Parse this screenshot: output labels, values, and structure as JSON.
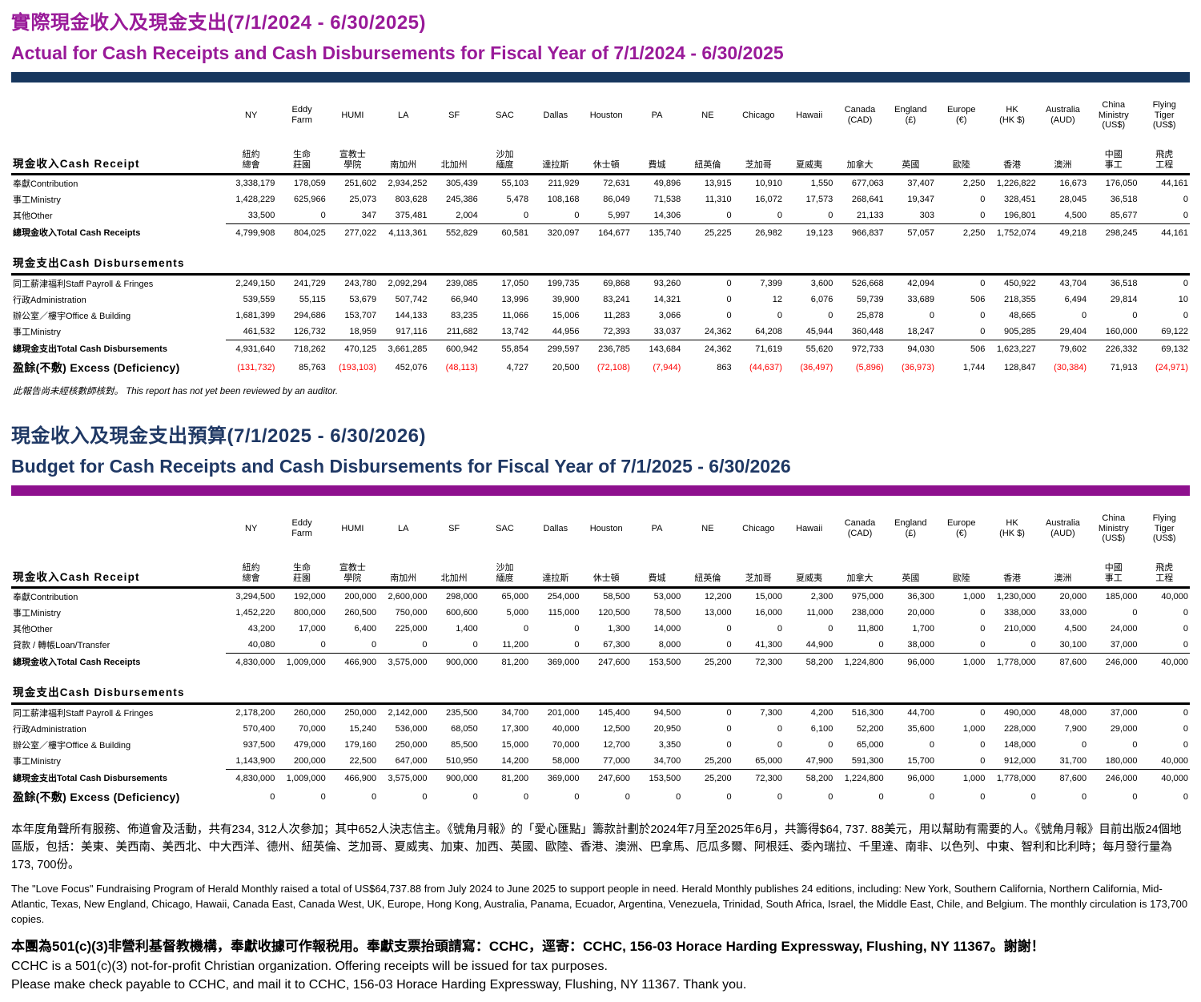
{
  "theme": {
    "purple": "#991A99",
    "navy": "#1F3864",
    "negative_color": "#FF0000"
  },
  "columns": [
    {
      "en": "NY",
      "zh": "紐約\n總會"
    },
    {
      "en": "Eddy\nFarm",
      "zh": "生命\n莊園"
    },
    {
      "en": "HUMI",
      "zh": "宣教士\n學院"
    },
    {
      "en": "LA",
      "zh": "南加州"
    },
    {
      "en": "SF",
      "zh": "北加州"
    },
    {
      "en": "SAC",
      "zh": "沙加\n緬度"
    },
    {
      "en": "Dallas",
      "zh": "達拉斯"
    },
    {
      "en": "Houston",
      "zh": "休士頓"
    },
    {
      "en": "PA",
      "zh": "費城"
    },
    {
      "en": "NE",
      "zh": "紐英倫"
    },
    {
      "en": "Chicago",
      "zh": "芝加哥"
    },
    {
      "en": "Hawaii",
      "zh": "夏威夷"
    },
    {
      "en": "Canada\n(CAD)",
      "zh": "加拿大"
    },
    {
      "en": "England\n(£)",
      "zh": "英國"
    },
    {
      "en": "Europe\n(€)",
      "zh": "歐陸"
    },
    {
      "en": "HK\n(HK $)",
      "zh": "香港"
    },
    {
      "en": "Australia\n(AUD)",
      "zh": "澳洲"
    },
    {
      "en": "China\nMinistry\n(US$)",
      "zh": "中國\n事工"
    },
    {
      "en": "Flying\nTiger\n(US$)",
      "zh": "飛虎\n工程"
    }
  ],
  "tables": [
    {
      "name": "actual-fy2024-2025",
      "title_zh": "實際現金收入及現金支出(7/1/2024 - 6/30/2025)",
      "title_en": "Actual for Cash Receipts and Cash Disbursements for Fiscal Year of 7/1/2024 - 6/30/2025",
      "receipts_label": "現金收入Cash Receipt",
      "receipt_rows": [
        {
          "label": "奉獻Contribution",
          "values": [
            "3,338,179",
            "178,059",
            "251,602",
            "2,934,252",
            "305,439",
            "55,103",
            "211,929",
            "72,631",
            "49,896",
            "13,915",
            "10,910",
            "1,550",
            "677,063",
            "37,407",
            "2,250",
            "1,226,822",
            "16,673",
            "176,050",
            "44,161"
          ]
        },
        {
          "label": "事工Ministry",
          "values": [
            "1,428,229",
            "625,966",
            "25,073",
            "803,628",
            "245,386",
            "5,478",
            "108,168",
            "86,049",
            "71,538",
            "11,310",
            "16,072",
            "17,573",
            "268,641",
            "19,347",
            "0",
            "328,451",
            "28,045",
            "36,518",
            "0"
          ]
        },
        {
          "label": "其他Other",
          "values": [
            "33,500",
            "0",
            "347",
            "375,481",
            "2,004",
            "0",
            "0",
            "5,997",
            "14,306",
            "0",
            "0",
            "0",
            "21,133",
            "303",
            "0",
            "196,801",
            "4,500",
            "85,677",
            "0"
          ]
        }
      ],
      "receipt_total": {
        "label": "總現金收入Total Cash Receipts",
        "values": [
          "4,799,908",
          "804,025",
          "277,022",
          "4,113,361",
          "552,829",
          "60,581",
          "320,097",
          "164,677",
          "135,740",
          "25,225",
          "26,982",
          "19,123",
          "966,837",
          "57,057",
          "2,250",
          "1,752,074",
          "49,218",
          "298,245",
          "44,161"
        ]
      },
      "disb_label": "現金支出Cash Disbursements",
      "disb_rows": [
        {
          "label": "同工薪津福利Staff Payroll & Fringes",
          "values": [
            "2,249,150",
            "241,729",
            "243,780",
            "2,092,294",
            "239,085",
            "17,050",
            "199,735",
            "69,868",
            "93,260",
            "0",
            "7,399",
            "3,600",
            "526,668",
            "42,094",
            "0",
            "450,922",
            "43,704",
            "36,518",
            "0"
          ]
        },
        {
          "label": "行政Administration",
          "values": [
            "539,559",
            "55,115",
            "53,679",
            "507,742",
            "66,940",
            "13,996",
            "39,900",
            "83,241",
            "14,321",
            "0",
            "12",
            "6,076",
            "59,739",
            "33,689",
            "506",
            "218,355",
            "6,494",
            "29,814",
            "10"
          ]
        },
        {
          "label": "辦公室／樓宇Office & Building",
          "values": [
            "1,681,399",
            "294,686",
            "153,707",
            "144,133",
            "83,235",
            "11,066",
            "15,006",
            "11,283",
            "3,066",
            "0",
            "0",
            "0",
            "25,878",
            "0",
            "0",
            "48,665",
            "0",
            "0",
            "0"
          ]
        },
        {
          "label": "事工Ministry",
          "values": [
            "461,532",
            "126,732",
            "18,959",
            "917,116",
            "211,682",
            "13,742",
            "44,956",
            "72,393",
            "33,037",
            "24,362",
            "64,208",
            "45,944",
            "360,448",
            "18,247",
            "0",
            "905,285",
            "29,404",
            "160,000",
            "69,122"
          ]
        }
      ],
      "disb_total": {
        "label": "總現金支出Total Cash Disbursements",
        "values": [
          "4,931,640",
          "718,262",
          "470,125",
          "3,661,285",
          "600,942",
          "55,854",
          "299,597",
          "236,785",
          "143,684",
          "24,362",
          "71,619",
          "55,620",
          "972,733",
          "94,030",
          "506",
          "1,623,227",
          "79,602",
          "226,332",
          "69,132"
        ]
      },
      "excess": {
        "label": "盈餘(不敷) Excess (Deficiency)",
        "values": [
          "(131,732)",
          "85,763",
          "(193,103)",
          "452,076",
          "(48,113)",
          "4,727",
          "20,500",
          "(72,108)",
          "(7,944)",
          "863",
          "(44,637)",
          "(36,497)",
          "(5,896)",
          "(36,973)",
          "1,744",
          "128,847",
          "(30,384)",
          "71,913",
          "(24,971)"
        ]
      },
      "note": "此報告尚未經核數師核對。 This report has not yet been reviewed by an auditor."
    },
    {
      "name": "budget-fy2025-2026",
      "title_zh": "現金收入及現金支出預算(7/1/2025 - 6/30/2026)",
      "title_en": "Budget for Cash Receipts and Cash Disbursements for Fiscal Year of 7/1/2025 - 6/30/2026",
      "receipts_label": "現金收入Cash Receipt",
      "receipt_rows": [
        {
          "label": "奉獻Contribution",
          "values": [
            "3,294,500",
            "192,000",
            "200,000",
            "2,600,000",
            "298,000",
            "65,000",
            "254,000",
            "58,500",
            "53,000",
            "12,200",
            "15,000",
            "2,300",
            "975,000",
            "36,300",
            "1,000",
            "1,230,000",
            "20,000",
            "185,000",
            "40,000"
          ]
        },
        {
          "label": "事工Ministry",
          "values": [
            "1,452,220",
            "800,000",
            "260,500",
            "750,000",
            "600,600",
            "5,000",
            "115,000",
            "120,500",
            "78,500",
            "13,000",
            "16,000",
            "11,000",
            "238,000",
            "20,000",
            "0",
            "338,000",
            "33,000",
            "0",
            "0"
          ]
        },
        {
          "label": "其他Other",
          "values": [
            "43,200",
            "17,000",
            "6,400",
            "225,000",
            "1,400",
            "0",
            "0",
            "1,300",
            "14,000",
            "0",
            "0",
            "0",
            "11,800",
            "1,700",
            "0",
            "210,000",
            "4,500",
            "24,000",
            "0"
          ]
        },
        {
          "label": "貸款 / 轉帳Loan/Transfer",
          "values": [
            "40,080",
            "0",
            "0",
            "0",
            "0",
            "11,200",
            "0",
            "67,300",
            "8,000",
            "0",
            "41,300",
            "44,900",
            "0",
            "38,000",
            "0",
            "0",
            "30,100",
            "37,000",
            "0"
          ]
        }
      ],
      "receipt_total": {
        "label": "總現金收入Total Cash Receipts",
        "values": [
          "4,830,000",
          "1,009,000",
          "466,900",
          "3,575,000",
          "900,000",
          "81,200",
          "369,000",
          "247,600",
          "153,500",
          "25,200",
          "72,300",
          "58,200",
          "1,224,800",
          "96,000",
          "1,000",
          "1,778,000",
          "87,600",
          "246,000",
          "40,000"
        ]
      },
      "disb_label": "現金支出Cash Disbursements",
      "disb_rows": [
        {
          "label": "同工薪津福利Staff Payroll & Fringes",
          "values": [
            "2,178,200",
            "260,000",
            "250,000",
            "2,142,000",
            "235,500",
            "34,700",
            "201,000",
            "145,400",
            "94,500",
            "0",
            "7,300",
            "4,200",
            "516,300",
            "44,700",
            "0",
            "490,000",
            "48,000",
            "37,000",
            "0"
          ]
        },
        {
          "label": "行政Administration",
          "values": [
            "570,400",
            "70,000",
            "15,240",
            "536,000",
            "68,050",
            "17,300",
            "40,000",
            "12,500",
            "20,950",
            "0",
            "0",
            "6,100",
            "52,200",
            "35,600",
            "1,000",
            "228,000",
            "7,900",
            "29,000",
            "0"
          ]
        },
        {
          "label": "辦公室／樓宇Office & Building",
          "values": [
            "937,500",
            "479,000",
            "179,160",
            "250,000",
            "85,500",
            "15,000",
            "70,000",
            "12,700",
            "3,350",
            "0",
            "0",
            "0",
            "65,000",
            "0",
            "0",
            "148,000",
            "0",
            "0",
            "0"
          ]
        },
        {
          "label": "事工Ministry",
          "values": [
            "1,143,900",
            "200,000",
            "22,500",
            "647,000",
            "510,950",
            "14,200",
            "58,000",
            "77,000",
            "34,700",
            "25,200",
            "65,000",
            "47,900",
            "591,300",
            "15,700",
            "0",
            "912,000",
            "31,700",
            "180,000",
            "40,000"
          ]
        }
      ],
      "disb_total": {
        "label": "總現金支出Total Cash Disbursements",
        "values": [
          "4,830,000",
          "1,009,000",
          "466,900",
          "3,575,000",
          "900,000",
          "81,200",
          "369,000",
          "247,600",
          "153,500",
          "25,200",
          "72,300",
          "58,200",
          "1,224,800",
          "96,000",
          "1,000",
          "1,778,000",
          "87,600",
          "246,000",
          "40,000"
        ]
      },
      "excess": {
        "label": "盈餘(不敷) Excess (Deficiency)",
        "values": [
          "0",
          "0",
          "0",
          "0",
          "0",
          "0",
          "0",
          "0",
          "0",
          "0",
          "0",
          "0",
          "0",
          "0",
          "0",
          "0",
          "0",
          "0",
          "0"
        ]
      },
      "note": ""
    }
  ],
  "footer": {
    "para_zh": "本年度角聲所有服務、佈道會及活動，共有234, 312人次參加；其中652人決志信主。《號角月報》的「愛心匯點」籌款計劃於2024年7月至2025年6月，共籌得$64, 737. 88美元，用以幫助有需要的人。《號角月報》目前出版24個地區版，包括：美東、美西南、美西北、中大西洋、德州、紐英倫、芝加哥、夏威夷、加東、加西、英國、歐陸、香港、澳洲、巴拿馬、厄瓜多爾、阿根廷、委內瑞拉、千里達、南非、以色列、中東、智利和比利時；每月發行量為173, 700份。",
    "para_en": "The \"Love Focus\" Fundraising Program of Herald Monthly raised a total of US$64,737.88 from July 2024 to June 2025 to support people in need. Herald Monthly publishes 24 editions, including: New York, Southern California, Northern California, Mid-Atlantic, Texas, New England, Chicago, Hawaii, Canada East, Canada West, UK, Europe, Hong Kong, Australia, Panama, Ecuador, Argentina, Venezuela, Trinidad, South Africa, Israel, the Middle East, Chile, and Belgium. The monthly circulation is 173,700 copies.",
    "tax_zh": "本團為501(c)(3)非營利基督教機構，奉獻收據可作報税用。奉獻支票抬頭請寫：CCHC，逕寄：CCHC, 156-03 Horace Harding Expressway, Flushing, NY 11367。謝謝！",
    "tax_en1": "CCHC is a 501(c)(3) not-for-profit Christian organization. Offering receipts will be issued for tax purposes.",
    "tax_en2": "Please make check payable to CCHC, and mail it to CCHC, 156-03 Horace Harding Expressway, Flushing, NY 11367. Thank you."
  }
}
